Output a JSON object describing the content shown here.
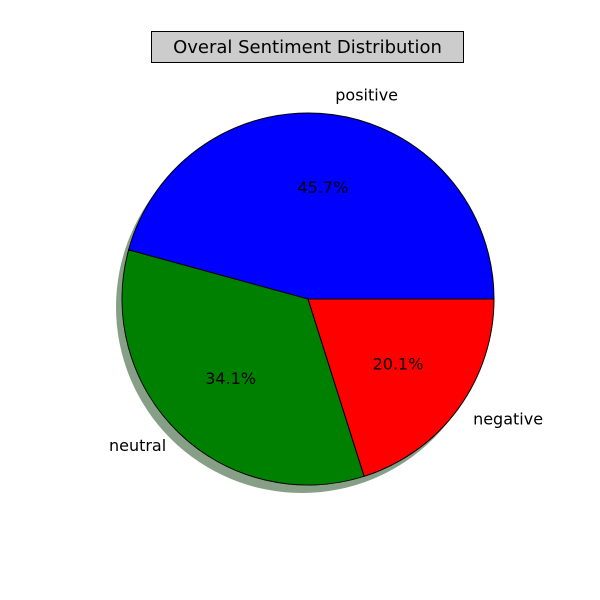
{
  "chart_data": {
    "type": "pie",
    "title": "Overal Sentiment Distribution",
    "slices": [
      {
        "label": "positive",
        "value": 45.7,
        "pct_label": "45.7%",
        "color": "#0000ff"
      },
      {
        "label": "neutral",
        "value": 34.1,
        "pct_label": "34.1%",
        "color": "#008000"
      },
      {
        "label": "negative",
        "value": 20.1,
        "pct_label": "20.1%",
        "color": "#ff0000"
      }
    ],
    "start_angle_deg": 0,
    "direction": "counterclockwise",
    "shadow": true,
    "shadow_color": "#5f7f5f",
    "edge_color": "#000000"
  }
}
